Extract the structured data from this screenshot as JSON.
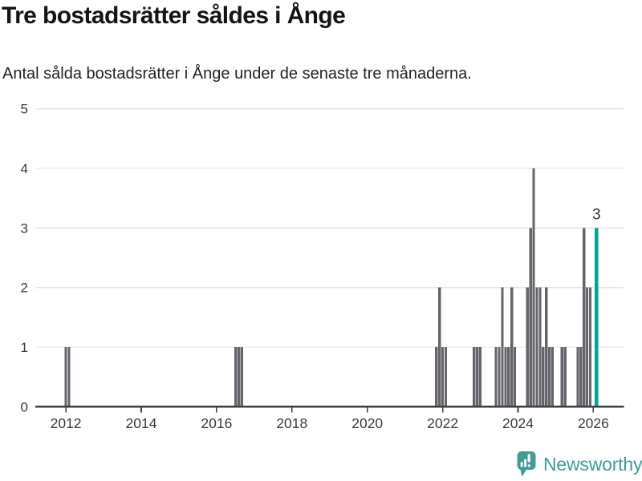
{
  "header": {
    "title": "Tre bostadsrätter såldes i Ånge",
    "subtitle": "Antal sålda bostadsrätter i Ånge under de senaste tre månaderna."
  },
  "chart_data": {
    "type": "bar",
    "title": "Tre bostadsrätter såldes i Ånge",
    "subtitle": "Antal sålda bostadsrätter i Ånge under de senaste tre månaderna.",
    "xlabel": "",
    "ylabel": "",
    "ylim": [
      0,
      5
    ],
    "yticks": [
      0,
      1,
      2,
      3,
      4,
      5
    ],
    "x_ticks_years": [
      2012,
      2014,
      2016,
      2018,
      2020,
      2022,
      2024,
      2026
    ],
    "x_range": {
      "start": 2011.21,
      "end": 2026.8
    },
    "grid": "horizontal",
    "legend": "none",
    "points": [
      {
        "month": "2012-01",
        "value": 1
      },
      {
        "month": "2012-02",
        "value": 1
      },
      {
        "month": "2016-07",
        "value": 1
      },
      {
        "month": "2016-08",
        "value": 1
      },
      {
        "month": "2016-09",
        "value": 1
      },
      {
        "month": "2021-11",
        "value": 1
      },
      {
        "month": "2021-12",
        "value": 2
      },
      {
        "month": "2022-01",
        "value": 1
      },
      {
        "month": "2022-02",
        "value": 1
      },
      {
        "month": "2022-11",
        "value": 1
      },
      {
        "month": "2022-12",
        "value": 1
      },
      {
        "month": "2023-01",
        "value": 1
      },
      {
        "month": "2023-06",
        "value": 1
      },
      {
        "month": "2023-07",
        "value": 1
      },
      {
        "month": "2023-08",
        "value": 2
      },
      {
        "month": "2023-09",
        "value": 1
      },
      {
        "month": "2023-10",
        "value": 1
      },
      {
        "month": "2023-11",
        "value": 2
      },
      {
        "month": "2023-12",
        "value": 1
      },
      {
        "month": "2024-04",
        "value": 2
      },
      {
        "month": "2024-05",
        "value": 3
      },
      {
        "month": "2024-06",
        "value": 4
      },
      {
        "month": "2024-07",
        "value": 2
      },
      {
        "month": "2024-08",
        "value": 2
      },
      {
        "month": "2024-09",
        "value": 1
      },
      {
        "month": "2024-10",
        "value": 2
      },
      {
        "month": "2024-11",
        "value": 1
      },
      {
        "month": "2024-12",
        "value": 1
      },
      {
        "month": "2025-03",
        "value": 1
      },
      {
        "month": "2025-04",
        "value": 1
      },
      {
        "month": "2025-08",
        "value": 1
      },
      {
        "month": "2025-09",
        "value": 1
      },
      {
        "month": "2025-10",
        "value": 3
      },
      {
        "month": "2025-11",
        "value": 2
      },
      {
        "month": "2025-12",
        "value": 2
      },
      {
        "month": "2026-02",
        "value": 3
      }
    ],
    "highlight_month": "2026-02",
    "highlight_label": "3",
    "colors": {
      "bar": "#64646b",
      "highlight": "#00a39e",
      "grid": "#e4e4e4",
      "axis": "#3d3d42",
      "tick_text": "#3a3a3a",
      "label_text": "#333333"
    }
  },
  "footer": {
    "brand": "Newsworthy",
    "brand_color": "#3f9c96"
  }
}
